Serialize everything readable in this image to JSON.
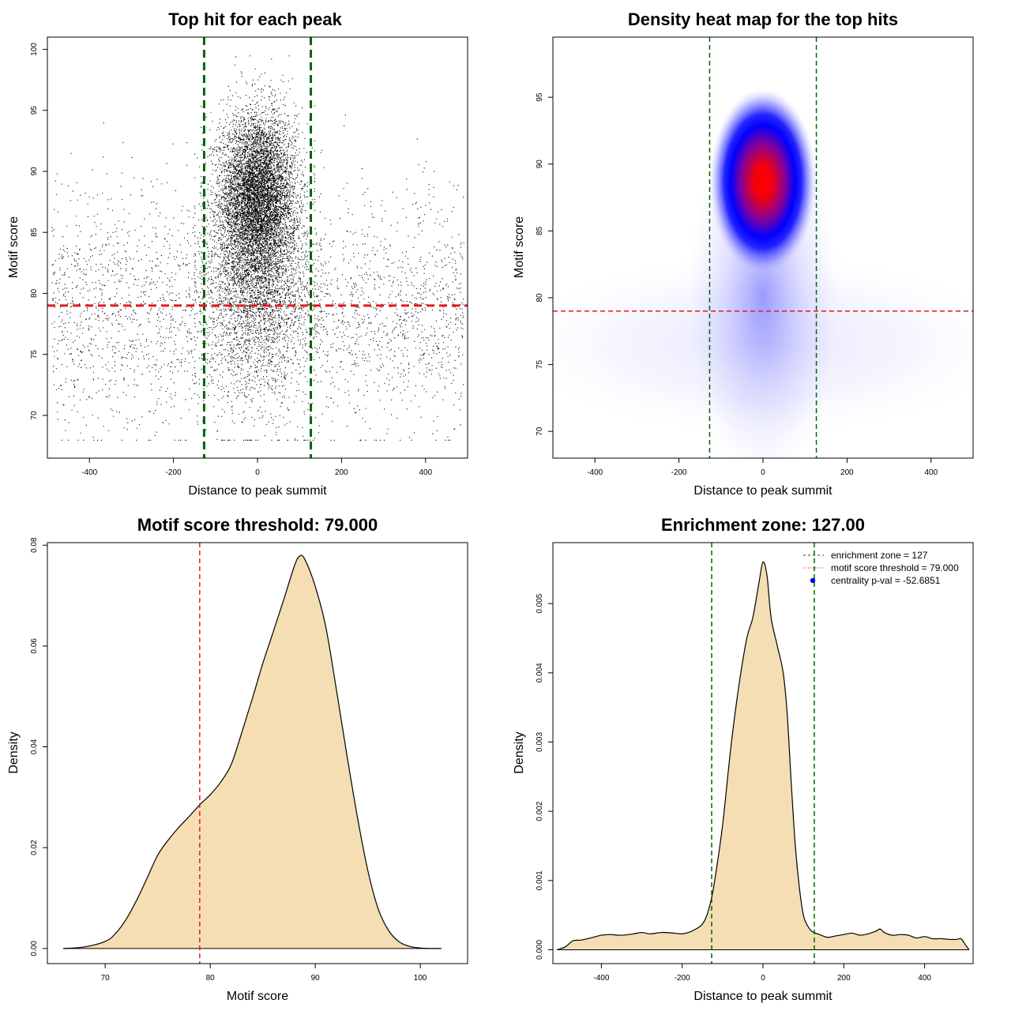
{
  "chart_data": [
    {
      "type": "scatter",
      "title": "Top hit for each peak",
      "xlabel": "Distance to peak summit",
      "ylabel": "Motif score",
      "xlim": [
        -500,
        500
      ],
      "ylim": [
        66.5,
        101
      ],
      "x_ticks": [
        "-400",
        "-200",
        "0",
        "200",
        "400"
      ],
      "y_ticks": [
        "70",
        "75",
        "80",
        "85",
        "90",
        "95",
        "100"
      ],
      "vlines": [
        -127,
        127
      ],
      "hline": 79,
      "clusters": [
        {
          "n": 7000,
          "x_center": 0,
          "x_sd": 45,
          "x_range": [
            -135,
            135
          ],
          "y_center": 88,
          "y_sd": 3.4,
          "y_range": [
            70,
            99.5
          ]
        },
        {
          "n": 2600,
          "x_center": 0,
          "x_sd": 60,
          "x_range": [
            -150,
            150
          ],
          "y_center": 80.5,
          "y_sd": 4.5,
          "y_range": [
            68,
            97
          ]
        },
        {
          "n": 3000,
          "x_uniform": [
            -490,
            490
          ],
          "y_center": 78.5,
          "y_sd": 5,
          "y_range": [
            68,
            98
          ]
        }
      ]
    },
    {
      "type": "heatmap",
      "title": "Density heat map for the top hits",
      "xlabel": "Distance to peak summit",
      "ylabel": "Motif score",
      "xlim": [
        -500,
        500
      ],
      "ylim": [
        68,
        99.5
      ],
      "x_ticks": [
        "-400",
        "-200",
        "0",
        "200",
        "400"
      ],
      "y_ticks": [
        "70",
        "75",
        "80",
        "85",
        "90",
        "95"
      ],
      "vlines": [
        -127,
        127
      ],
      "hline": 79,
      "density_peak": {
        "x": 0,
        "y": 88.7
      },
      "colors": {
        "low": "#ffffff",
        "mid": "#0000ff",
        "high": "#ff0000"
      }
    },
    {
      "type": "area",
      "title": "Motif score threshold: 79.000",
      "xlabel": "Motif score",
      "ylabel": "Density",
      "xlim": [
        64.5,
        104.5
      ],
      "ylim": [
        -0.003,
        0.0805
      ],
      "x_ticks": [
        "70",
        "80",
        "90",
        "100"
      ],
      "y_ticks": [
        "0.00",
        "0.02",
        "0.04",
        "0.06",
        "0.08"
      ],
      "vline": 79,
      "x": [
        66,
        68,
        70,
        71,
        72,
        73,
        74,
        75,
        76,
        77,
        78,
        79,
        80,
        81,
        82,
        83,
        84,
        85,
        86,
        87,
        88,
        88.5,
        89,
        90,
        91,
        92,
        93,
        94,
        95,
        96,
        97,
        98,
        99,
        100,
        101,
        102
      ],
      "y": [
        0.0,
        0.0003,
        0.0014,
        0.003,
        0.0058,
        0.0096,
        0.014,
        0.0185,
        0.0215,
        0.024,
        0.0262,
        0.0285,
        0.0305,
        0.033,
        0.0365,
        0.0428,
        0.0495,
        0.0565,
        0.0628,
        0.0692,
        0.0758,
        0.0778,
        0.0772,
        0.0718,
        0.0638,
        0.0515,
        0.0385,
        0.0262,
        0.0155,
        0.0078,
        0.0035,
        0.0013,
        0.0004,
        0.0001,
        0.0,
        0.0
      ]
    },
    {
      "type": "area",
      "title": "Enrichment zone: 127.00",
      "xlabel": "Distance to peak summit",
      "ylabel": "Density",
      "xlim": [
        -520,
        520
      ],
      "ylim": [
        -0.0002,
        0.00588
      ],
      "x_ticks": [
        "-400",
        "-200",
        "0",
        "200",
        "400"
      ],
      "y_ticks": [
        "0.000",
        "0.001",
        "0.002",
        "0.003",
        "0.004",
        "0.005"
      ],
      "vlines": [
        -127,
        127
      ],
      "x": [
        -510,
        -490,
        -470,
        -450,
        -420,
        -400,
        -380,
        -350,
        -320,
        -300,
        -280,
        -250,
        -220,
        -200,
        -180,
        -160,
        -150,
        -140,
        -130,
        -120,
        -100,
        -80,
        -60,
        -40,
        -25,
        -10,
        0,
        10,
        20,
        35,
        50,
        60,
        70,
        80,
        90,
        100,
        110,
        120,
        130,
        140,
        160,
        180,
        200,
        220,
        240,
        260,
        280,
        290,
        300,
        320,
        340,
        360,
        380,
        400,
        420,
        440,
        460,
        480,
        490,
        500,
        510
      ],
      "y": [
        0.0,
        4e-05,
        0.00013,
        0.00014,
        0.00018,
        0.00021,
        0.00022,
        0.00021,
        0.00023,
        0.00025,
        0.00023,
        0.00025,
        0.00024,
        0.00023,
        0.00026,
        0.00032,
        0.00037,
        0.00048,
        0.00068,
        0.00098,
        0.0018,
        0.0029,
        0.0038,
        0.0045,
        0.0048,
        0.0053,
        0.0056,
        0.0054,
        0.0048,
        0.0044,
        0.004,
        0.0034,
        0.0024,
        0.0015,
        0.0009,
        0.0005,
        0.00035,
        0.00027,
        0.00024,
        0.00022,
        0.00018,
        0.0002,
        0.00022,
        0.00024,
        0.00021,
        0.00023,
        0.00027,
        0.0003,
        0.00025,
        0.00021,
        0.00022,
        0.00021,
        0.00017,
        0.00019,
        0.00016,
        0.00016,
        0.00015,
        0.00015,
        0.00016,
        8e-05,
        0.0
      ],
      "legend": [
        {
          "label": "enrichment zone = 127",
          "type": "dashed-line",
          "color": "#006400"
        },
        {
          "label": "motif score threshold = 79.000",
          "type": "dotted-line",
          "color": "#ff0000"
        },
        {
          "label": "centrality p-val = -52.6851",
          "type": "point",
          "color": "#0000ff"
        }
      ],
      "legend_position": "top-right"
    }
  ],
  "colors": {
    "enrichment_line": "#006400",
    "threshold_line": "#e31a1c",
    "density_fill": "#f5deb3",
    "points": "#000000"
  }
}
